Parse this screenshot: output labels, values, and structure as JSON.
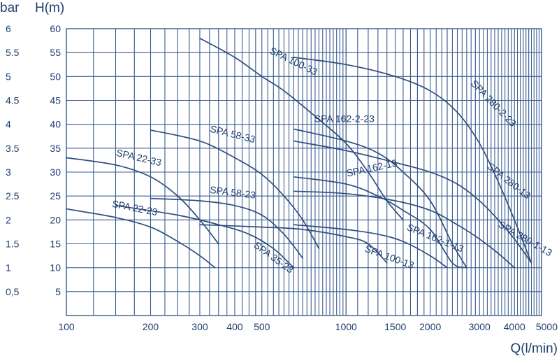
{
  "chart_data": {
    "type": "line",
    "x_scale": "log",
    "y_scale": "linear",
    "xlabel": "Q(l/min)",
    "ylabel_left": "bar",
    "ylabel_right": "H(m)",
    "xlim": [
      100,
      5000
    ],
    "ylim": [
      0,
      60
    ],
    "grid": true,
    "x_ticks": [
      {
        "value": 100,
        "label": "100"
      },
      {
        "value": 200,
        "label": "200"
      },
      {
        "value": 300,
        "label": "300"
      },
      {
        "value": 400,
        "label": "400"
      },
      {
        "value": 500,
        "label": "500"
      },
      {
        "value": 1000,
        "label": "1000"
      },
      {
        "value": 1500,
        "label": "1500"
      },
      {
        "value": 2000,
        "label": "2000"
      },
      {
        "value": 3000,
        "label": "3000"
      },
      {
        "value": 4000,
        "label": "4000"
      },
      {
        "value": 5000,
        "label": "5000"
      }
    ],
    "y_ticks": [
      5,
      10,
      15,
      20,
      25,
      30,
      35,
      40,
      45,
      50,
      55,
      60
    ],
    "bar_ticks": [
      {
        "h": 5,
        "label": "0,5"
      },
      {
        "h": 10,
        "label": "1"
      },
      {
        "h": 15,
        "label": "1.5"
      },
      {
        "h": 20,
        "label": "2"
      },
      {
        "h": 25,
        "label": "2.5"
      },
      {
        "h": 30,
        "label": "3"
      },
      {
        "h": 35,
        "label": "3.5"
      },
      {
        "h": 40,
        "label": "4"
      },
      {
        "h": 45,
        "label": "4.5"
      },
      {
        "h": 50,
        "label": "5"
      },
      {
        "h": 55,
        "label": "5.5"
      },
      {
        "h": 60,
        "label": "6"
      }
    ],
    "series": [
      {
        "name": "SPA 22-33",
        "points": [
          [
            100,
            33
          ],
          [
            150,
            31.5
          ],
          [
            200,
            29
          ],
          [
            250,
            25
          ],
          [
            300,
            20
          ],
          [
            350,
            15
          ]
        ]
      },
      {
        "name": "SPA 22-23",
        "points": [
          [
            100,
            22.3
          ],
          [
            150,
            20.5
          ],
          [
            200,
            18.5
          ],
          [
            250,
            15.5
          ],
          [
            300,
            12.5
          ],
          [
            340,
            10
          ]
        ]
      },
      {
        "name": "SPA 58-33",
        "points": [
          [
            200,
            38.8
          ],
          [
            300,
            36.5
          ],
          [
            400,
            33
          ],
          [
            500,
            29.5
          ],
          [
            600,
            25
          ],
          [
            700,
            20
          ],
          [
            800,
            14
          ]
        ]
      },
      {
        "name": "SPA 58-23",
        "points": [
          [
            200,
            24.5
          ],
          [
            300,
            24
          ],
          [
            400,
            23
          ],
          [
            500,
            21
          ],
          [
            600,
            17
          ],
          [
            700,
            12
          ]
        ]
      },
      {
        "name": "SPA 35-23",
        "points": [
          [
            150,
            23
          ],
          [
            250,
            21
          ],
          [
            350,
            19
          ],
          [
            450,
            17
          ],
          [
            550,
            14
          ],
          [
            650,
            10
          ]
        ]
      },
      {
        "name": "SPA 100-33",
        "points": [
          [
            300,
            58
          ],
          [
            400,
            54
          ],
          [
            500,
            50
          ],
          [
            600,
            47
          ],
          [
            800,
            41
          ],
          [
            1000,
            36
          ],
          [
            1200,
            30
          ],
          [
            1400,
            24
          ],
          [
            1600,
            20
          ]
        ]
      },
      {
        "name": "SPA 100-13",
        "points": [
          [
            300,
            19
          ],
          [
            500,
            18.5
          ],
          [
            700,
            18
          ],
          [
            1000,
            16.5
          ],
          [
            1200,
            15
          ],
          [
            1400,
            11
          ]
        ]
      },
      {
        "name": "SPA 162-2-23",
        "points": [
          [
            650,
            39
          ],
          [
            1000,
            36.5
          ],
          [
            1300,
            34
          ],
          [
            1600,
            30
          ],
          [
            2000,
            24
          ],
          [
            2400,
            15
          ],
          [
            2700,
            10
          ]
        ]
      },
      {
        "name": "SPA 162-13",
        "points": [
          [
            650,
            29
          ],
          [
            1000,
            27.5
          ],
          [
            1300,
            25
          ],
          [
            1600,
            22
          ],
          [
            2000,
            18
          ],
          [
            2400,
            11
          ],
          [
            2700,
            10
          ]
        ]
      },
      {
        "name": "SPA 162-1-13",
        "points": [
          [
            650,
            19
          ],
          [
            1000,
            18
          ],
          [
            1300,
            17
          ],
          [
            1600,
            15.5
          ],
          [
            2000,
            12.5
          ],
          [
            2300,
            10
          ]
        ]
      },
      {
        "name": "SPA 280-2-23",
        "points": [
          [
            650,
            54
          ],
          [
            1000,
            52.5
          ],
          [
            1500,
            50
          ],
          [
            2000,
            47
          ],
          [
            2500,
            42.5
          ],
          [
            3000,
            36
          ],
          [
            3500,
            28
          ],
          [
            4000,
            20
          ],
          [
            4600,
            11
          ]
        ]
      },
      {
        "name": "SPA 280-13",
        "points": [
          [
            650,
            36.5
          ],
          [
            1000,
            34.5
          ],
          [
            1500,
            32
          ],
          [
            2000,
            30
          ],
          [
            2500,
            27.5
          ],
          [
            3000,
            24
          ],
          [
            3500,
            20
          ],
          [
            4000,
            16
          ],
          [
            4600,
            11
          ]
        ]
      },
      {
        "name": "SPA 280-1-13",
        "points": [
          [
            650,
            26
          ],
          [
            1000,
            25.5
          ],
          [
            1500,
            24
          ],
          [
            2000,
            22
          ],
          [
            2500,
            19
          ],
          [
            3000,
            16
          ],
          [
            3500,
            13
          ],
          [
            4000,
            10
          ]
        ]
      }
    ],
    "curve_labels": [
      {
        "series": "SPA 22-33",
        "text": "SPA 22-33",
        "at_x": 150,
        "at_h": 33,
        "angle": 13
      },
      {
        "series": "SPA 22-23",
        "text": "SPA 22-23",
        "at_x": 145,
        "at_h": 22.3,
        "angle": 11
      },
      {
        "series": "SPA 58-33",
        "text": "SPA 58-33",
        "at_x": 325,
        "at_h": 38,
        "angle": 14
      },
      {
        "series": "SPA 58-23",
        "text": "SPA 58-23",
        "at_x": 325,
        "at_h": 25.2,
        "angle": 7
      },
      {
        "series": "SPA 35-23",
        "text": "SPA 35-23",
        "at_x": 465,
        "at_h": 14,
        "angle": 36
      },
      {
        "series": "SPA 100-33",
        "text": "SPA 100-33",
        "at_x": 530,
        "at_h": 54.5,
        "angle": 26
      },
      {
        "series": "SPA 100-13",
        "text": "SPA 100-13",
        "at_x": 1160,
        "at_h": 13,
        "angle": 20
      },
      {
        "series": "SPA 162-2-23",
        "text": "SPA 162-2-23",
        "at_x": 770,
        "at_h": 40,
        "angle": 0
      },
      {
        "series": "SPA 162-13",
        "text": "SPA 162-13",
        "at_x": 1010,
        "at_h": 28.6,
        "angle": -12
      },
      {
        "series": "SPA 162-1-13",
        "text": "SPA 162-1-13",
        "at_x": 1640,
        "at_h": 17.5,
        "angle": 22
      },
      {
        "series": "SPA 280-2-23",
        "text": "SPA 280-2-23",
        "at_x": 2780,
        "at_h": 48,
        "angle": 46
      },
      {
        "series": "SPA 280-13",
        "text": "SPA 280-13",
        "at_x": 3180,
        "at_h": 30.5,
        "angle": 38
      },
      {
        "series": "SPA 280-1-13",
        "text": "SPA 280-1-13",
        "at_x": 3480,
        "at_h": 18.2,
        "angle": 30
      }
    ],
    "colors": {
      "grid": "#3a5d8e",
      "curve": "#2f4f7f",
      "text": "#1f3f6e"
    }
  }
}
